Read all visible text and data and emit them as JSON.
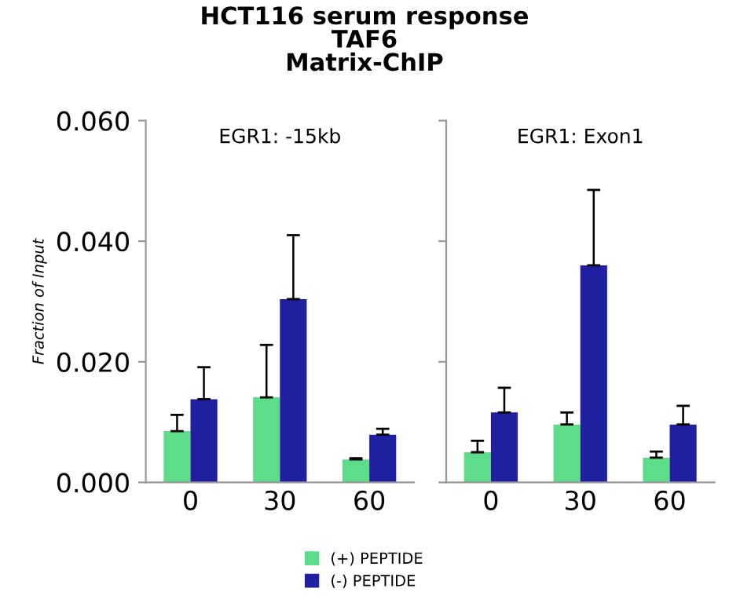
{
  "chart_data": [
    {
      "type": "bar",
      "title": "HCT116 serum response\nTAF6\nMatrix-ChIP",
      "subtitle": "EGR1: -15kb",
      "ylabel": "Fraction of Input",
      "categories": [
        "0",
        "30",
        "60"
      ],
      "ylim": [
        0,
        0.06
      ],
      "yticks": [
        {
          "value": 0,
          "label": "0.000"
        },
        {
          "value": 0.02,
          "label": "0.020"
        },
        {
          "value": 0.04,
          "label": "0.040"
        },
        {
          "value": 0.06,
          "label": "0.060"
        }
      ],
      "legend": "bottom",
      "series": [
        {
          "name": "(+) PEPTIDE",
          "color": "#5ddc8a",
          "values": [
            0.0085,
            0.0141,
            0.0038
          ],
          "errors": [
            [
              0.0085,
              0.0112
            ],
            [
              0.0141,
              0.0228
            ],
            [
              0.0038,
              0.004
            ]
          ]
        },
        {
          "name": "(-) PEPTIDE",
          "color": "#1f1fa0",
          "values": [
            0.0138,
            0.0304,
            0.0079
          ],
          "errors": [
            [
              0.0138,
              0.0191
            ],
            [
              0.0304,
              0.041
            ],
            [
              0.0079,
              0.0089
            ]
          ]
        }
      ]
    },
    {
      "type": "bar",
      "subtitle": "EGR1: Exon1",
      "categories": [
        "0",
        "30",
        "60"
      ],
      "ylim": [
        0,
        0.06
      ],
      "yticks": [
        {
          "value": 0,
          "label": null
        },
        {
          "value": 0.02,
          "label": null
        },
        {
          "value": 0.04,
          "label": null
        },
        {
          "value": 0.06,
          "label": null
        }
      ],
      "tick_labels": "x",
      "series": [
        {
          "color": "#5ddc8a",
          "values": [
            0.005,
            0.0096,
            0.0041
          ],
          "errors": [
            [
              0.005,
              0.0069
            ],
            [
              0.0096,
              0.0116
            ],
            [
              0.0041,
              0.0051
            ]
          ]
        },
        {
          "color": "#1f1fa0",
          "values": [
            0.0116,
            0.036,
            0.0096
          ],
          "errors": [
            [
              0.0116,
              0.0157
            ],
            [
              0.036,
              0.0485
            ],
            [
              0.0096,
              0.0127
            ]
          ]
        }
      ]
    }
  ]
}
